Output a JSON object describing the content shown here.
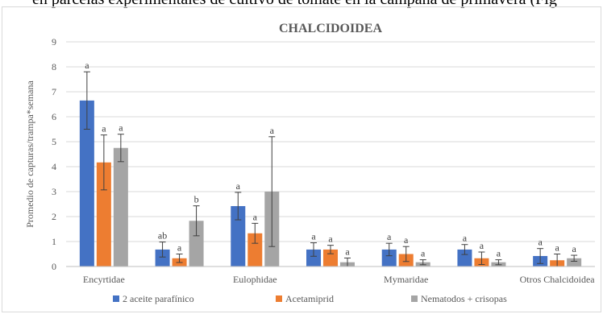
{
  "header_fragment": "en parcelas experimentales de cultivo de tomate en la campaña de primavera (Fig",
  "chart_data": {
    "type": "bar",
    "title": "CHALCIDOIDEA",
    "xlabel": "",
    "ylabel": "Promedio de capturas/trampa*semana",
    "ylim": [
      0,
      9
    ],
    "yticks": [
      "0",
      "1",
      "2",
      "3",
      "4",
      "5",
      "6",
      "7",
      "8",
      "9"
    ],
    "grid": true,
    "legend_position": "bottom",
    "categories": [
      "Encyrtidae",
      "",
      "Eulophidae",
      "",
      "Mymaridae",
      "",
      "Otros Chalcidoidea"
    ],
    "tick_labels": [
      "Encyrtidae",
      "Eulophidae",
      "Mymaridae",
      "Otros Chalcidoidea"
    ],
    "series": [
      {
        "name": "2 aceite parafínico",
        "color": "#4472c4",
        "values": [
          6.65,
          0.68,
          2.42,
          0.68,
          0.68,
          0.68,
          0.42
        ],
        "errors": [
          1.15,
          0.3,
          0.55,
          0.27,
          0.25,
          0.2,
          0.3
        ],
        "letters": [
          "a",
          "ab",
          "a",
          "a",
          "a",
          "a",
          "a"
        ]
      },
      {
        "name": "Acetamiprid",
        "color": "#ed7d31",
        "values": [
          4.17,
          0.33,
          1.33,
          0.68,
          0.5,
          0.33,
          0.25
        ],
        "errors": [
          1.1,
          0.17,
          0.4,
          0.17,
          0.3,
          0.25,
          0.25
        ],
        "letters": [
          "a",
          "a",
          "a",
          "a",
          "a",
          "a",
          "a"
        ]
      },
      {
        "name": "Nematodos + crisopas",
        "color": "#a5a5a5",
        "values": [
          4.75,
          1.83,
          3.0,
          0.17,
          0.17,
          0.17,
          0.33
        ],
        "errors": [
          0.55,
          0.6,
          2.2,
          0.17,
          0.1,
          0.1,
          0.12
        ],
        "letters": [
          "a",
          "b",
          "a",
          "a",
          "a",
          "a",
          "a"
        ]
      }
    ]
  }
}
